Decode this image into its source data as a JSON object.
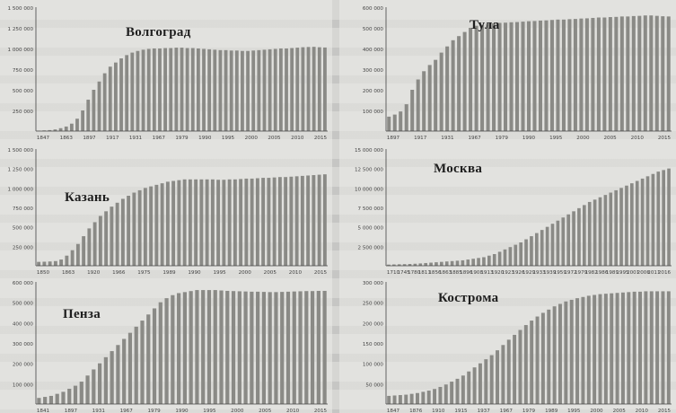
{
  "chart_data": [
    {
      "type": "bar",
      "title": "Волгоград",
      "x_tick_labels": [
        "1847",
        "1863",
        "1897",
        "1917",
        "1931",
        "1967",
        "1979",
        "1990",
        "1995",
        "2000",
        "2005",
        "2010",
        "2015"
      ],
      "y_tick_labels": [
        "1 500 000",
        "1 250 000",
        "1 000 000",
        "750 000",
        "500 000",
        "250 000"
      ],
      "ylim": [
        0,
        1500000
      ],
      "series": [
        {
          "values": [
            5000,
            8000,
            12000,
            20000,
            35000,
            55000,
            90000,
            150000,
            250000,
            380000,
            500000,
            600000,
            700000,
            780000,
            830000,
            880000,
            920000,
            950000,
            970000,
            985000,
            995000,
            1000000,
            1000000,
            1005000,
            1005000,
            1010000,
            1010000,
            1005000,
            1005000,
            1000000,
            995000,
            990000,
            985000,
            980000,
            980000,
            975000,
            975000,
            970000,
            970000,
            975000,
            980000,
            985000,
            990000,
            995000,
            1000000,
            1000000,
            1005000,
            1010000,
            1015000,
            1018000,
            1020000,
            1015000,
            1012000
          ]
        }
      ]
    },
    {
      "type": "bar",
      "title": "Тула",
      "x_tick_labels": [
        "1897",
        "1917",
        "1931",
        "1967",
        "1979",
        "1990",
        "1995",
        "2000",
        "2005",
        "2010",
        "2015"
      ],
      "y_tick_labels": [
        "600 000",
        "500 000",
        "400 000",
        "300 000",
        "200 000",
        "100 000"
      ],
      "ylim": [
        0,
        600000
      ],
      "series": [
        {
          "values": [
            70000,
            80000,
            95000,
            130000,
            200000,
            250000,
            290000,
            320000,
            345000,
            380000,
            410000,
            440000,
            460000,
            480000,
            500000,
            510000,
            515000,
            520000,
            522000,
            524000,
            525000,
            527000,
            528000,
            530000,
            532000,
            533000,
            535000,
            536000,
            538000,
            540000,
            540000,
            542000,
            543000,
            545000,
            546000,
            548000,
            550000,
            550000,
            552000,
            553000,
            555000,
            555000,
            557000,
            558000,
            560000,
            560000,
            558000,
            556000,
            555000
          ]
        }
      ]
    },
    {
      "type": "bar",
      "title": "Казань",
      "x_tick_labels": [
        "1850",
        "1863",
        "1920",
        "1966",
        "1975",
        "1989",
        "1990",
        "1995",
        "2000",
        "2005",
        "2010",
        "2015"
      ],
      "y_tick_labels": [
        "1 500 000",
        "1 250 000",
        "1 000 000",
        "750 000",
        "500 000",
        "250 000"
      ],
      "ylim": [
        0,
        1500000
      ],
      "series": [
        {
          "values": [
            50000,
            52000,
            55000,
            60000,
            80000,
            130000,
            200000,
            280000,
            380000,
            480000,
            560000,
            640000,
            700000,
            760000,
            810000,
            860000,
            900000,
            940000,
            970000,
            1000000,
            1020000,
            1040000,
            1060000,
            1080000,
            1090000,
            1100000,
            1110000,
            1110000,
            1110000,
            1110000,
            1110000,
            1110000,
            1105000,
            1105000,
            1110000,
            1110000,
            1115000,
            1120000,
            1120000,
            1125000,
            1130000,
            1130000,
            1135000,
            1140000,
            1140000,
            1145000,
            1150000,
            1155000,
            1160000,
            1165000,
            1170000,
            1175000
          ]
        }
      ]
    },
    {
      "type": "bar",
      "title": "Москва",
      "x_tick_labels": [
        "1710",
        "1745",
        "1780",
        "1811",
        "1856",
        "1863",
        "1885",
        "1896",
        "1908",
        "1913",
        "1920",
        "1923",
        "1926",
        "1929",
        "1933",
        "1939",
        "1959",
        "1972",
        "1979",
        "1982",
        "1986",
        "1989",
        "1995",
        "2001",
        "2006",
        "2011",
        "2016"
      ],
      "y_tick_labels": [
        "15 000 000",
        "12 500 000",
        "10 000 000",
        "7 500 000",
        "5 000 000",
        "2 500 000"
      ],
      "ylim": [
        0,
        15000000
      ],
      "series": [
        {
          "values": [
            150000,
            170000,
            190000,
            210000,
            230000,
            260000,
            300000,
            350000,
            400000,
            450000,
            500000,
            550000,
            600000,
            650000,
            700000,
            800000,
            900000,
            1000000,
            1100000,
            1300000,
            1500000,
            1800000,
            2100000,
            2400000,
            2700000,
            3000000,
            3400000,
            3800000,
            4200000,
            4600000,
            5000000,
            5400000,
            5800000,
            6200000,
            6600000,
            7000000,
            7400000,
            7800000,
            8200000,
            8500000,
            8800000,
            9100000,
            9400000,
            9700000,
            10000000,
            10300000,
            10600000,
            10900000,
            11200000,
            11500000,
            11800000,
            12100000,
            12300000,
            12500000
          ]
        }
      ]
    },
    {
      "type": "bar",
      "title": "Пенза",
      "x_tick_labels": [
        "1841",
        "1897",
        "1931",
        "1967",
        "1979",
        "1990",
        "1995",
        "2000",
        "2005",
        "2010",
        "2015"
      ],
      "y_tick_labels": [
        "600 000",
        "500 000",
        "400 000",
        "300 000",
        "200 000",
        "100 000"
      ],
      "ylim": [
        0,
        600000
      ],
      "series": [
        {
          "values": [
            30000,
            35000,
            40000,
            50000,
            60000,
            75000,
            90000,
            110000,
            140000,
            170000,
            200000,
            230000,
            260000,
            290000,
            320000,
            350000,
            380000,
            410000,
            440000,
            470000,
            500000,
            520000,
            535000,
            545000,
            550000,
            555000,
            560000,
            560000,
            560000,
            560000,
            558000,
            556000,
            555000,
            554000,
            553000,
            552000,
            552000,
            551000,
            550000,
            550000,
            551000,
            552000,
            553000,
            554000,
            555000,
            555000,
            556000,
            556000
          ]
        }
      ]
    },
    {
      "type": "bar",
      "title": "Кострома",
      "x_tick_labels": [
        "1847",
        "1876",
        "1910",
        "1915",
        "1937",
        "1967",
        "1979",
        "1989",
        "1995",
        "2000",
        "2005",
        "2010",
        "2015"
      ],
      "y_tick_labels": [
        "300 000",
        "250 000",
        "200 000",
        "150 000",
        "100 000",
        "50 000"
      ],
      "ylim": [
        0,
        300000
      ],
      "series": [
        {
          "values": [
            20000,
            21000,
            22000,
            23000,
            25000,
            27000,
            30000,
            33000,
            37000,
            42000,
            48000,
            55000,
            62000,
            70000,
            80000,
            90000,
            100000,
            110000,
            120000,
            132000,
            145000,
            158000,
            170000,
            182000,
            194000,
            205000,
            215000,
            224000,
            232000,
            240000,
            246000,
            252000,
            256000,
            260000,
            263000,
            266000,
            268000,
            270000,
            271000,
            272000,
            273000,
            274000,
            275000,
            276000,
            276000,
            277000,
            277000,
            277000,
            277000,
            277000
          ]
        }
      ]
    }
  ]
}
